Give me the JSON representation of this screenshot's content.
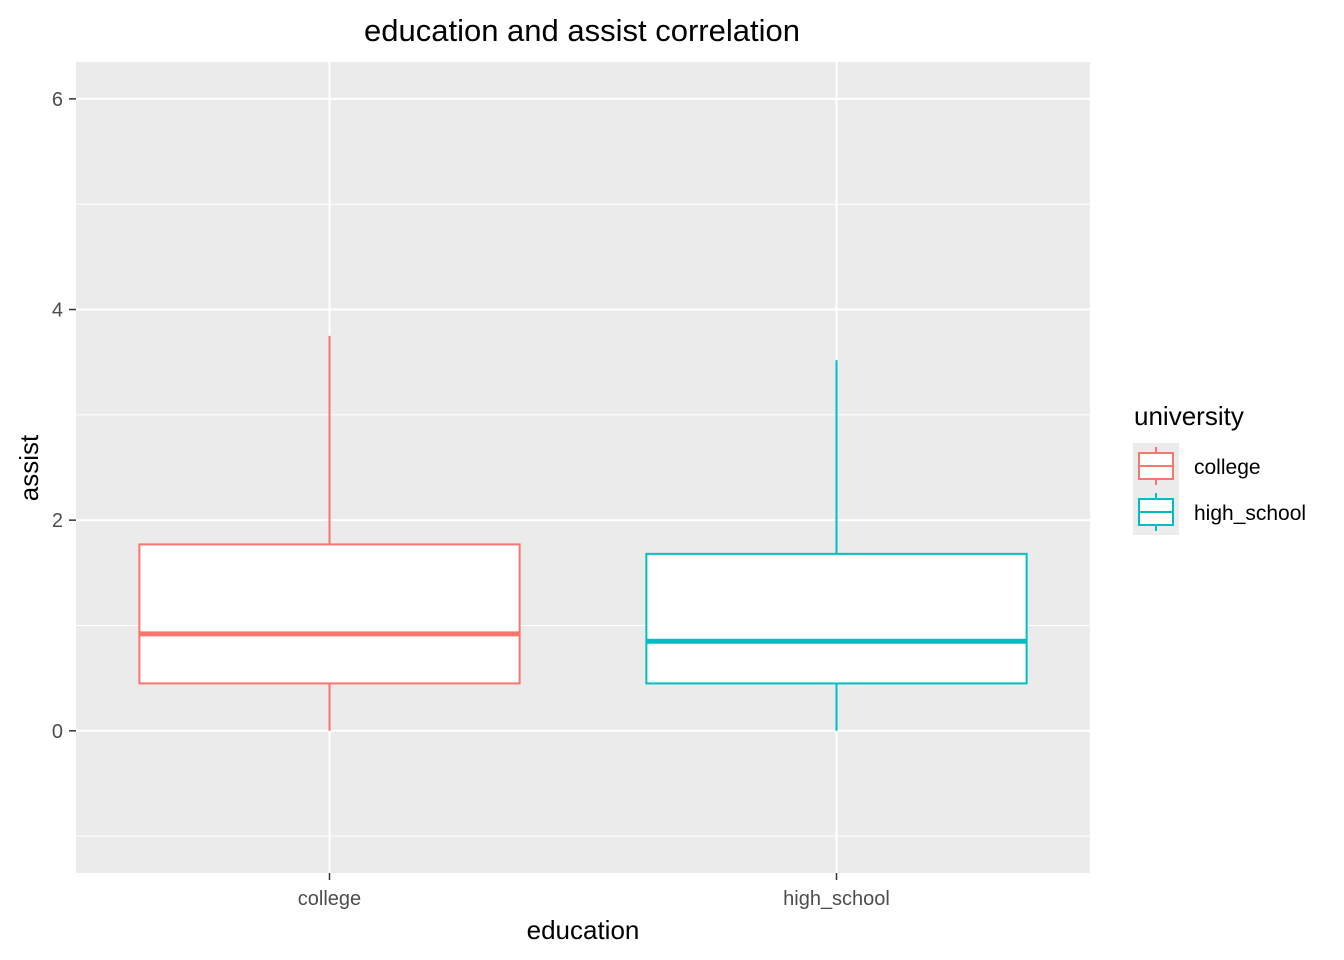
{
  "chart_data": {
    "type": "boxplot",
    "title": "education and assist correlation",
    "xlabel": "education",
    "ylabel": "assist",
    "ylim": [
      -1.35,
      6.35
    ],
    "y_ticks": [
      0,
      2,
      4,
      6
    ],
    "grid": true,
    "legend": {
      "title": "university",
      "position": "right",
      "entries": [
        "college",
        "high_school"
      ]
    },
    "categories": [
      "college",
      "high_school"
    ],
    "series": [
      {
        "name": "college",
        "color": "#F8766D",
        "min": 0,
        "q1": 0.45,
        "median": 0.92,
        "q3": 1.77,
        "max": 3.75
      },
      {
        "name": "high_school",
        "color": "#00BFC4",
        "min": 0,
        "q1": 0.45,
        "median": 0.85,
        "q3": 1.68,
        "max": 3.52
      }
    ]
  }
}
